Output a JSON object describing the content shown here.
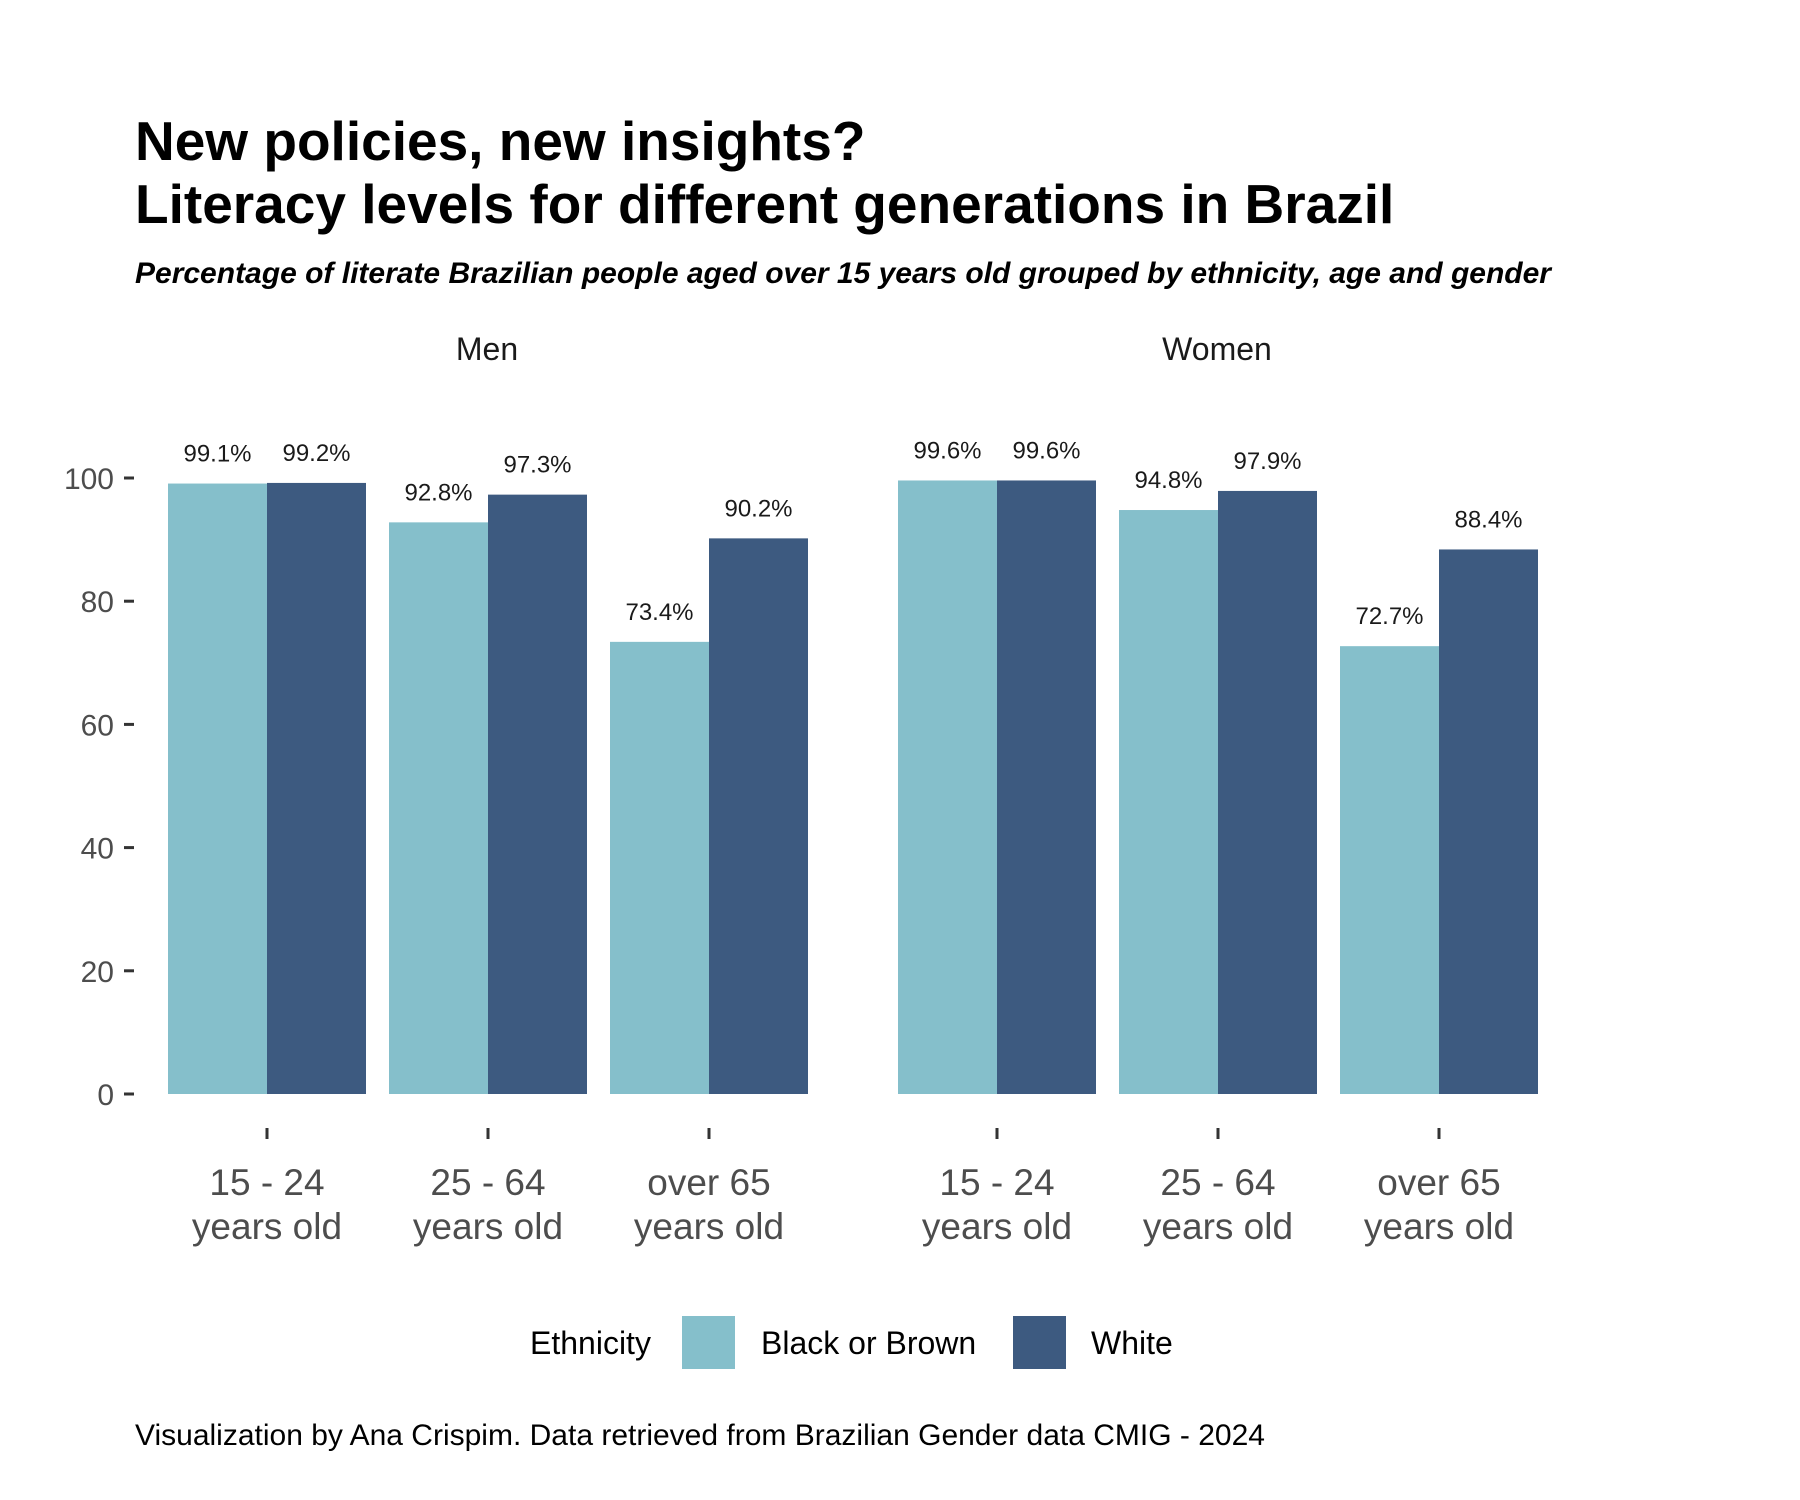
{
  "chart_data": {
    "type": "bar",
    "title_lines": [
      "New policies, new insights?",
      "Literacy levels for different generations in Brazil"
    ],
    "subtitle": "Percentage of literate Brazilian people aged over 15 years old grouped by ethnicity, age and gender",
    "caption": "Visualization by Ana Crispim. Data retrieved from Brazilian Gender data CMIG - 2024",
    "ylim": [
      0,
      100
    ],
    "yticks": [
      0,
      20,
      40,
      60,
      80,
      100
    ],
    "grid": false,
    "legend": {
      "title": "Ethnicity",
      "position": "bottom",
      "entries": [
        {
          "name": "Black or Brown",
          "color": "#85BFCB"
        },
        {
          "name": "White",
          "color": "#3D5A80"
        }
      ]
    },
    "categories": [
      [
        "15 - 24",
        "years old"
      ],
      [
        "25 - 64",
        "years old"
      ],
      [
        "over 65",
        "years old"
      ]
    ],
    "facets": [
      {
        "name": "Men",
        "series": [
          {
            "name": "Black or Brown",
            "values": [
              99.1,
              92.8,
              73.4
            ],
            "labels": [
              "99.1%",
              "92.8%",
              "73.4%"
            ]
          },
          {
            "name": "White",
            "values": [
              99.2,
              97.3,
              90.2
            ],
            "labels": [
              "99.2%",
              "97.3%",
              "90.2%"
            ]
          }
        ]
      },
      {
        "name": "Women",
        "series": [
          {
            "name": "Black or Brown",
            "values": [
              99.6,
              94.8,
              72.7
            ],
            "labels": [
              "99.6%",
              "94.8%",
              "72.7%"
            ]
          },
          {
            "name": "White",
            "values": [
              99.6,
              97.9,
              88.4
            ],
            "labels": [
              "99.6%",
              "97.9%",
              "88.4%"
            ]
          }
        ]
      }
    ]
  }
}
